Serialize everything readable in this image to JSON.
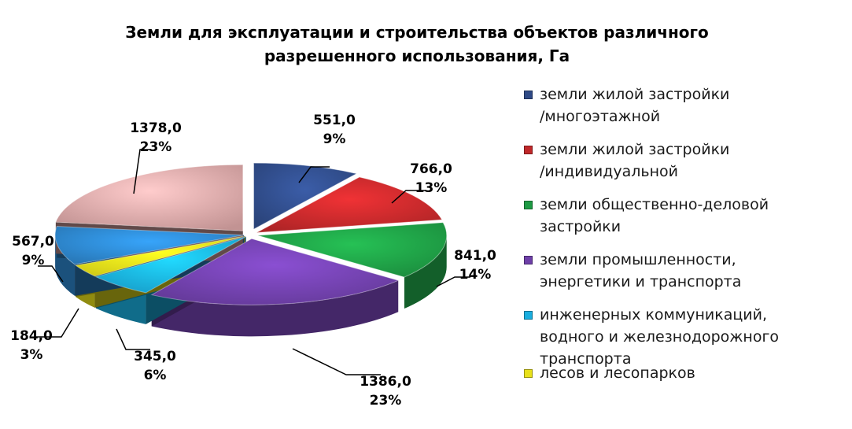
{
  "chart_data": {
    "type": "pie",
    "title_lines": [
      "Земли для эксплуатации и строительства объектов различного",
      "разрешенного использования, Га"
    ],
    "slices": [
      {
        "name": "земли жилой застройки /многоэтажной",
        "legend_lines": [
          "земли жилой застройки",
          "/многоэтажной"
        ],
        "value": 551.0,
        "value_label": "551,0",
        "percent_label": "9%",
        "color": "#2F4A86"
      },
      {
        "name": "земли жилой застройки /индивидуальной",
        "legend_lines": [
          "земли жилой застройки",
          "/индивидуальной"
        ],
        "value": 766.0,
        "value_label": "766,0",
        "percent_label": "13%",
        "color": "#C0282A"
      },
      {
        "name": "земли общественно-деловой застройки",
        "legend_lines": [
          "земли общественно-деловой",
          "застройки"
        ],
        "value": 841.0,
        "value_label": "841,0",
        "percent_label": "14%",
        "color": "#1E9A44"
      },
      {
        "name": "земли промышленности, энергетики и транспорта",
        "legend_lines": [
          "земли промышленности,",
          "энергетики и транспорта"
        ],
        "value": 1386.0,
        "value_label": "1386,0",
        "percent_label": "23%",
        "color": "#6E3FA8"
      },
      {
        "name": "инженерных коммуникаций, водного и железнодорожного транспорта",
        "legend_lines": [
          "инженерных коммуникаций,",
          "водного и железнодорожного",
          "транспорта"
        ],
        "value": 345.0,
        "value_label": "345,0",
        "percent_label": "6%",
        "color": "#1AAEDF"
      },
      {
        "name": "лесов и лесопарков",
        "legend_lines": [
          "лесов и лесопарков"
        ],
        "value": 184.0,
        "value_label": "184,0",
        "percent_label": "3%",
        "color": "#E8E11A"
      },
      {
        "name": "",
        "legend_lines": [],
        "value": 567.0,
        "value_label": "567,0",
        "percent_label": "9%",
        "color": "#2C83C8"
      },
      {
        "name": "",
        "legend_lines": [],
        "value": 1378.0,
        "value_label": "1378,0",
        "percent_label": "23%",
        "color": "#D8A3A3"
      }
    ],
    "legend_position": "right"
  }
}
